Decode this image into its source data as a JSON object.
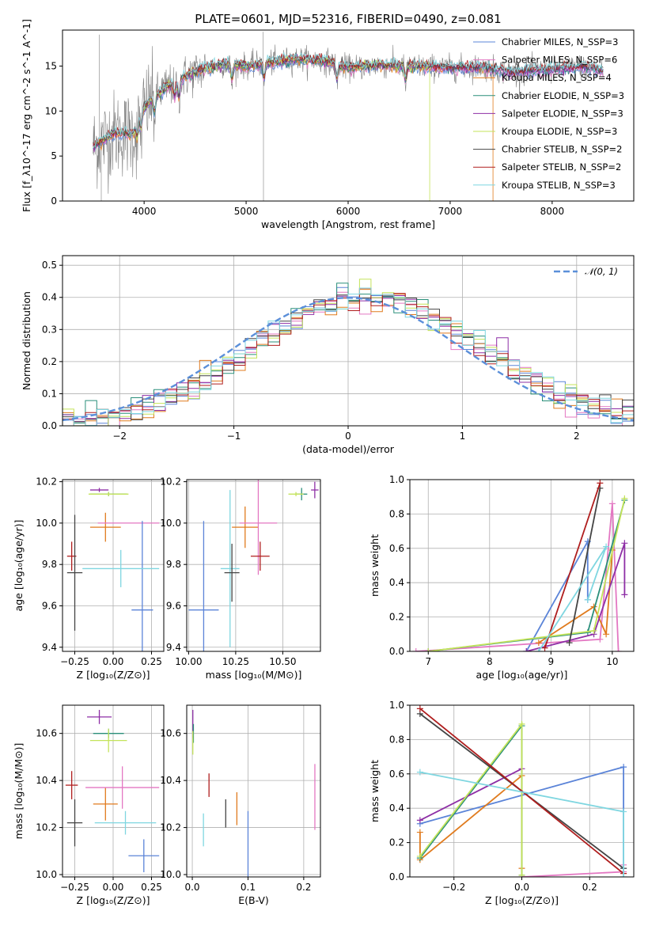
{
  "colors": {
    "Chabrier MILES": "#5b84d8",
    "Salpeter MILES": "#e377c2",
    "Kroupa MILES": "#e07b1e",
    "Chabrier ELODIE": "#2a8f7a",
    "Salpeter ELODIE": "#8e2fa6",
    "Kroupa ELODIE": "#c4e35a",
    "Chabrier STELIB": "#444444",
    "Salpeter STELIB": "#b01e1e",
    "Kroupa STELIB": "#7fd6e0",
    "spectrum": "#808080",
    "normal": "#5b8fd9"
  },
  "chart_data": [
    {
      "id": "spectrum",
      "type": "line",
      "title": "PLATE=0601, MJD=52316, FIBERID=0490, z=0.081",
      "xlabel": "wavelength [Angstrom, rest frame]",
      "ylabel": "Flux [f_λ10^-17 erg cm^-2 s^-1 A^-1]",
      "xlim": [
        3200,
        8800
      ],
      "ylim": [
        0,
        19
      ],
      "xticks": [
        4000,
        5000,
        6000,
        7000,
        8000
      ],
      "yticks": [
        0,
        5,
        10,
        15
      ],
      "grid": false,
      "legend_position": "top-right",
      "legend": [
        "Chabrier MILES, N_SSP=3",
        "Salpeter MILES, N_SSP=6",
        "Kroupa MILES, N_SSP=4",
        "Chabrier ELODIE, N_SSP=3",
        "Salpeter ELODIE, N_SSP=3",
        "Kroupa ELODIE, N_SSP=3",
        "Chabrier STELIB, N_SSP=2",
        "Salpeter STELIB, N_SSP=2",
        "Kroupa STELIB, N_SSP=3"
      ],
      "data_continuum": [
        [
          3500,
          6.0
        ],
        [
          3700,
          7.5
        ],
        [
          3900,
          7.5
        ],
        [
          3950,
          9.5
        ],
        [
          4050,
          11.0
        ],
        [
          4200,
          12.5
        ],
        [
          4400,
          13.8
        ],
        [
          4600,
          14.8
        ],
        [
          4800,
          15.2
        ],
        [
          5000,
          15.0
        ],
        [
          5200,
          15.3
        ],
        [
          5500,
          15.8
        ],
        [
          5800,
          15.5
        ],
        [
          6000,
          14.8
        ],
        [
          6300,
          15.1
        ],
        [
          6600,
          15.0
        ],
        [
          7000,
          14.8
        ],
        [
          7300,
          14.9
        ],
        [
          7600,
          14.3
        ],
        [
          8000,
          14.6
        ],
        [
          8300,
          14.9
        ],
        [
          8500,
          14.5
        ]
      ],
      "model_range": [
        3500,
        8500
      ],
      "model_cutoffs": {
        "Kroupa ELODIE": 6800,
        "Kroupa MILES": 7420
      }
    },
    {
      "id": "residuals",
      "type": "histogram",
      "xlabel": "(data-model)/error",
      "ylabel": "Normed distribution",
      "xlim": [
        -2.5,
        2.5
      ],
      "ylim": [
        0,
        0.53
      ],
      "xticks": [
        -2,
        -1,
        0,
        1,
        2
      ],
      "yticks": [
        0.0,
        0.1,
        0.2,
        0.3,
        0.4,
        0.5
      ],
      "bin_width": 0.1,
      "grid": true,
      "legend_position": "top-right",
      "legend": [
        "𝒩(0, 1)"
      ],
      "reference_curve": "normal(0,1)"
    },
    {
      "id": "age_vs_Z",
      "type": "errorbar",
      "xlabel": "Z [log₁₀(Z/Z⊙)]",
      "ylabel": "age  [log₁₀(age/yr)]",
      "xlim": [
        -0.33,
        0.33
      ],
      "ylim": [
        9.38,
        10.21
      ],
      "xticks": [
        -0.25,
        0.0,
        0.25
      ],
      "xticklabels": [
        "−0.25",
        "0.00",
        "0.25"
      ],
      "yticks": [
        9.4,
        9.6,
        9.8,
        10.0,
        10.2
      ],
      "grid": true,
      "points": [
        {
          "series": "Salpeter ELODIE",
          "x": -0.09,
          "y": 10.16,
          "xerr": 0.06,
          "yerr": 0.01
        },
        {
          "series": "Chabrier ELODIE",
          "x": -0.03,
          "y": 10.14,
          "xerr": 0.12,
          "yerr": 0.01
        },
        {
          "series": "Kroupa ELODIE",
          "x": -0.03,
          "y": 10.14,
          "xerr": 0.13,
          "yerr": 0.01
        },
        {
          "series": "Kroupa MILES",
          "x": -0.05,
          "y": 9.98,
          "xerr": 0.1,
          "yerr": 0.07
        },
        {
          "series": "Salpeter MILES",
          "x": 0.1,
          "y": 10.0,
          "xerr": 0.2,
          "yerr": 0.0
        },
        {
          "series": "Chabrier MILES",
          "x": 0.19,
          "y": 9.58,
          "xerr": 0.07,
          "yerr": 0.43
        },
        {
          "series": "Kroupa STELIB",
          "x": 0.05,
          "y": 9.78,
          "xerr": 0.25,
          "yerr": 0.09
        },
        {
          "series": "Salpeter STELIB",
          "x": -0.27,
          "y": 9.84,
          "xerr": 0.03,
          "yerr": 0.07
        },
        {
          "series": "Chabrier STELIB",
          "x": -0.25,
          "y": 9.76,
          "xerr": 0.05,
          "yerr": 0.28
        }
      ]
    },
    {
      "id": "age_vs_mass",
      "type": "errorbar",
      "xlabel": "mass [log₁₀(M/M⊙)]",
      "ylabel": "",
      "xlim": [
        9.99,
        10.7
      ],
      "ylim": [
        9.38,
        10.21
      ],
      "xticks": [
        10.0,
        10.25,
        10.5
      ],
      "xticklabels": [
        "10.00",
        "10.25",
        "10.50"
      ],
      "yticks": [
        9.4,
        9.6,
        9.8,
        10.0,
        10.2
      ],
      "grid": true,
      "points": [
        {
          "series": "Salpeter ELODIE",
          "x": 10.67,
          "y": 10.16,
          "xerr": 0.02,
          "yerr": 0.04
        },
        {
          "series": "Chabrier ELODIE",
          "x": 10.6,
          "y": 10.14,
          "xerr": 0.03,
          "yerr": 0.03
        },
        {
          "series": "Kroupa ELODIE",
          "x": 10.57,
          "y": 10.14,
          "xerr": 0.04,
          "yerr": 0.01
        },
        {
          "series": "Kroupa MILES",
          "x": 10.3,
          "y": 9.98,
          "xerr": 0.07,
          "yerr": 0.1
        },
        {
          "series": "Salpeter MILES",
          "x": 10.37,
          "y": 10.0,
          "xerr": 0.1,
          "yerr": 0.25
        },
        {
          "series": "Chabrier MILES",
          "x": 10.08,
          "y": 9.58,
          "xerr": 0.08,
          "yerr": 0.43
        },
        {
          "series": "Kroupa STELIB",
          "x": 10.22,
          "y": 9.78,
          "xerr": 0.05,
          "yerr": 0.38
        },
        {
          "series": "Salpeter STELIB",
          "x": 10.38,
          "y": 9.84,
          "xerr": 0.05,
          "yerr": 0.07
        },
        {
          "series": "Chabrier STELIB",
          "x": 10.23,
          "y": 9.76,
          "xerr": 0.04,
          "yerr": 0.14
        }
      ]
    },
    {
      "id": "mass_weight_vs_age",
      "type": "line",
      "xlabel": "age  [log₁₀(age/yr)]",
      "ylabel": "mass weight",
      "xlim": [
        6.7,
        10.35
      ],
      "ylim": [
        0,
        1
      ],
      "xticks": [
        7,
        8,
        9,
        10
      ],
      "yticks": [
        0.0,
        0.2,
        0.4,
        0.6,
        0.8,
        1.0
      ],
      "grid": true,
      "series": [
        {
          "name": "Chabrier MILES",
          "points": [
            [
              8.6,
              0.0
            ],
            [
              9.6,
              0.64
            ],
            [
              9.6,
              0.3
            ]
          ]
        },
        {
          "name": "Salpeter MILES",
          "points": [
            [
              6.8,
              0.0
            ],
            [
              9.8,
              0.07
            ],
            [
              10.0,
              0.86
            ],
            [
              10.1,
              0.0
            ]
          ]
        },
        {
          "name": "Kroupa MILES",
          "points": [
            [
              8.8,
              0.05
            ],
            [
              9.7,
              0.26
            ],
            [
              9.9,
              0.1
            ],
            [
              10.0,
              0.59
            ]
          ]
        },
        {
          "name": "Chabrier ELODIE",
          "points": [
            [
              7.0,
              0.0
            ],
            [
              9.6,
              0.11
            ],
            [
              10.2,
              0.88
            ]
          ]
        },
        {
          "name": "Salpeter ELODIE",
          "points": [
            [
              8.6,
              0.0
            ],
            [
              9.7,
              0.1
            ],
            [
              10.2,
              0.63
            ],
            [
              10.2,
              0.33
            ]
          ]
        },
        {
          "name": "Kroupa ELODIE",
          "points": [
            [
              7.0,
              0.0
            ],
            [
              9.7,
              0.12
            ],
            [
              10.2,
              0.89
            ]
          ]
        },
        {
          "name": "Chabrier STELIB",
          "points": [
            [
              9.3,
              0.05
            ],
            [
              9.8,
              0.95
            ]
          ]
        },
        {
          "name": "Salpeter STELIB",
          "points": [
            [
              8.9,
              0.02
            ],
            [
              9.8,
              0.98
            ]
          ]
        },
        {
          "name": "Kroupa STELIB",
          "points": [
            [
              8.8,
              0.0
            ],
            [
              9.9,
              0.61
            ],
            [
              9.6,
              0.3
            ]
          ]
        }
      ]
    },
    {
      "id": "mass_vs_Z",
      "type": "errorbar",
      "xlabel": "Z [log₁₀(Z/Z⊙)]",
      "ylabel": "mass [log₁₀(M/M⊙)]",
      "xlim": [
        -0.33,
        0.33
      ],
      "ylim": [
        9.99,
        10.72
      ],
      "xticks": [
        -0.25,
        0.0,
        0.25
      ],
      "xticklabels": [
        "−0.25",
        "0.00",
        "0.25"
      ],
      "yticks": [
        10.0,
        10.2,
        10.4,
        10.6
      ],
      "grid": true,
      "points": [
        {
          "series": "Salpeter ELODIE",
          "x": -0.09,
          "y": 10.67,
          "xerr": 0.08,
          "yerr": 0.03
        },
        {
          "series": "Chabrier ELODIE",
          "x": -0.03,
          "y": 10.6,
          "xerr": 0.1,
          "yerr": 0.02
        },
        {
          "series": "Kroupa ELODIE",
          "x": -0.03,
          "y": 10.57,
          "xerr": 0.12,
          "yerr": 0.05
        },
        {
          "series": "Kroupa MILES",
          "x": -0.05,
          "y": 10.3,
          "xerr": 0.08,
          "yerr": 0.07
        },
        {
          "series": "Salpeter MILES",
          "x": 0.06,
          "y": 10.37,
          "xerr": 0.24,
          "yerr": 0.09
        },
        {
          "series": "Chabrier MILES",
          "x": 0.2,
          "y": 10.08,
          "xerr": 0.1,
          "yerr": 0.07
        },
        {
          "series": "Kroupa STELIB",
          "x": 0.08,
          "y": 10.22,
          "xerr": 0.2,
          "yerr": 0.05
        },
        {
          "series": "Salpeter STELIB",
          "x": -0.27,
          "y": 10.38,
          "xerr": 0.04,
          "yerr": 0.06
        },
        {
          "series": "Chabrier STELIB",
          "x": -0.25,
          "y": 10.22,
          "xerr": 0.05,
          "yerr": 0.1
        }
      ]
    },
    {
      "id": "mass_vs_EBV",
      "type": "errorbar",
      "xlabel": "E(B-V)",
      "ylabel": "",
      "xlim": [
        -0.01,
        0.23
      ],
      "ylim": [
        9.99,
        10.72
      ],
      "xticks": [
        0.0,
        0.1,
        0.2
      ],
      "xticklabels": [
        "0.0",
        "0.1",
        "0.2"
      ],
      "yticks": [
        10.0,
        10.2,
        10.4,
        10.6
      ],
      "grid": true,
      "points": [
        {
          "series": "Salpeter ELODIE",
          "x": 0.001,
          "y": 10.64,
          "xerr": 0,
          "yerr": 0.06
        },
        {
          "series": "Chabrier ELODIE",
          "x": 0.002,
          "y": 10.6,
          "xerr": 0,
          "yerr": 0.04
        },
        {
          "series": "Kroupa ELODIE",
          "x": 0.001,
          "y": 10.56,
          "xerr": 0,
          "yerr": 0.05
        },
        {
          "series": "Salpeter STELIB",
          "x": 0.03,
          "y": 10.38,
          "xerr": 0,
          "yerr": 0.05
        },
        {
          "series": "Kroupa MILES",
          "x": 0.08,
          "y": 10.28,
          "xerr": 0,
          "yerr": 0.07
        },
        {
          "series": "Salpeter MILES",
          "x": 0.22,
          "y": 10.33,
          "xerr": 0,
          "yerr": 0.14
        },
        {
          "series": "Kroupa STELIB",
          "x": 0.02,
          "y": 10.19,
          "xerr": 0,
          "yerr": 0.07
        },
        {
          "series": "Chabrier STELIB",
          "x": 0.06,
          "y": 10.26,
          "xerr": 0,
          "yerr": 0.06
        },
        {
          "series": "Chabrier MILES",
          "x": 0.1,
          "y": 10.13,
          "xerr": 0,
          "yerr": 0.14
        }
      ]
    },
    {
      "id": "mass_weight_vs_Z",
      "type": "line",
      "xlabel": "Z [log₁₀(Z/Z⊙)]",
      "ylabel": "mass weight",
      "xlim": [
        -0.33,
        0.33
      ],
      "ylim": [
        0,
        1
      ],
      "xticks": [
        -0.2,
        0.0,
        0.2
      ],
      "xticklabels": [
        "−0.2",
        "0.0",
        "0.2"
      ],
      "yticks": [
        0.0,
        0.2,
        0.4,
        0.6,
        0.8,
        1.0
      ],
      "grid": true,
      "series": [
        {
          "name": "Chabrier MILES",
          "points": [
            [
              -0.3,
              0.31
            ],
            [
              0.3,
              0.64
            ],
            [
              0.3,
              0.05
            ]
          ]
        },
        {
          "name": "Salpeter MILES",
          "points": [
            [
              0.0,
              0.0
            ],
            [
              0.3,
              0.03
            ],
            [
              0.3,
              0.07
            ]
          ]
        },
        {
          "name": "Kroupa MILES",
          "points": [
            [
              -0.3,
              0.26
            ],
            [
              -0.3,
              0.1
            ],
            [
              0.0,
              0.59
            ],
            [
              0.0,
              0.05
            ]
          ]
        },
        {
          "name": "Chabrier ELODIE",
          "points": [
            [
              -0.3,
              0.11
            ],
            [
              0.0,
              0.88
            ],
            [
              0.0,
              0.01
            ]
          ]
        },
        {
          "name": "Salpeter ELODIE",
          "points": [
            [
              -0.3,
              0.33
            ],
            [
              0.0,
              0.63
            ]
          ]
        },
        {
          "name": "Kroupa ELODIE",
          "points": [
            [
              -0.3,
              0.12
            ],
            [
              0.0,
              0.89
            ],
            [
              0.0,
              0.01
            ]
          ]
        },
        {
          "name": "Chabrier STELIB",
          "points": [
            [
              -0.3,
              0.95
            ],
            [
              0.3,
              0.05
            ]
          ]
        },
        {
          "name": "Salpeter STELIB",
          "points": [
            [
              -0.3,
              0.98
            ],
            [
              0.3,
              0.02
            ]
          ]
        },
        {
          "name": "Kroupa STELIB",
          "points": [
            [
              -0.3,
              0.61
            ],
            [
              0.3,
              0.38
            ],
            [
              0.3,
              0.0
            ]
          ]
        }
      ]
    }
  ]
}
